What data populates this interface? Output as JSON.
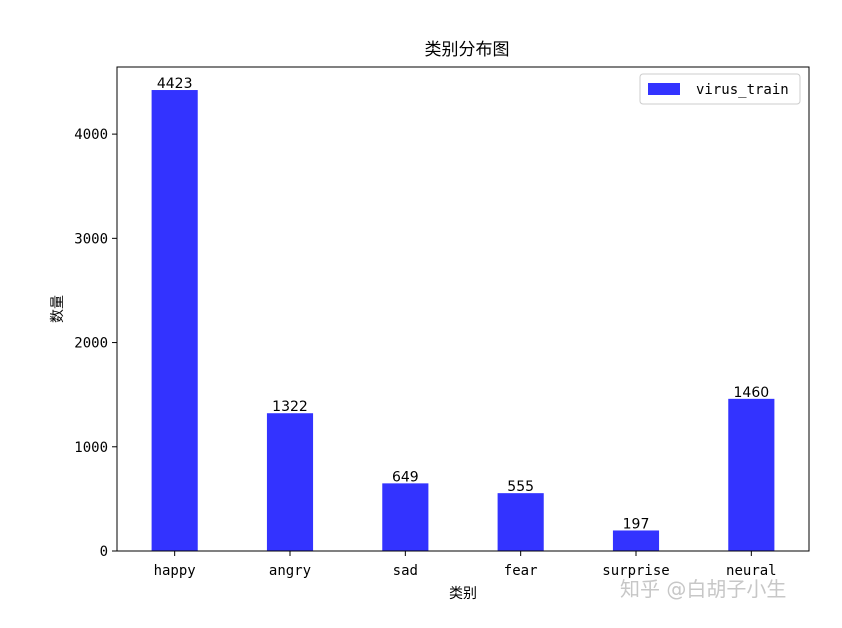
{
  "chart_data": {
    "type": "bar",
    "title": "类别分布图",
    "xlabel": "类别",
    "ylabel": "数量",
    "categories": [
      "happy",
      "angry",
      "sad",
      "fear",
      "surprise",
      "neural"
    ],
    "series": [
      {
        "name": "virus_train",
        "values": [
          4423,
          1322,
          649,
          555,
          197,
          1460
        ],
        "color": "#3333ff"
      }
    ],
    "ylim": [
      0,
      4644
    ],
    "yticks": [
      0,
      1000,
      2000,
      3000,
      4000
    ],
    "grid": false,
    "legend_position": "top-right",
    "data_labels": [
      "4423",
      "1322",
      "649",
      "555",
      "197",
      "1460"
    ]
  },
  "watermark": {
    "text": "知乎 @白胡子小生"
  }
}
